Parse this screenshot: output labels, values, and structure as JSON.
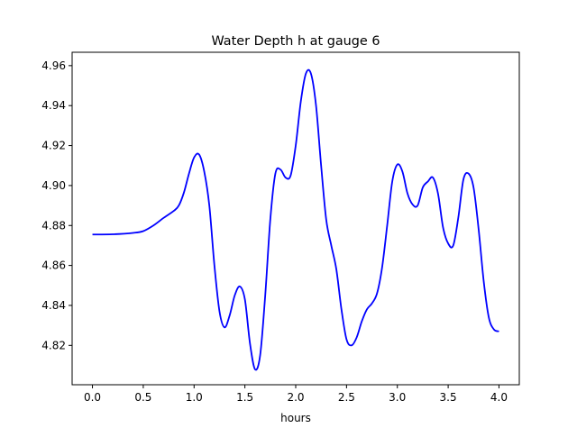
{
  "chart_data": {
    "type": "line",
    "title": "Water Depth h at gauge 6",
    "xlabel": "hours",
    "ylabel": "",
    "xlim": [
      -0.2,
      4.2
    ],
    "ylim": [
      4.8003,
      4.9667
    ],
    "xticks": [
      0.0,
      0.5,
      1.0,
      1.5,
      2.0,
      2.5,
      3.0,
      3.5,
      4.0
    ],
    "xtick_labels": [
      "0.0",
      "0.5",
      "1.0",
      "1.5",
      "2.0",
      "2.5",
      "3.0",
      "3.5",
      "4.0"
    ],
    "yticks": [
      4.82,
      4.84,
      4.86,
      4.88,
      4.9,
      4.92,
      4.94,
      4.96
    ],
    "ytick_labels": [
      "4.82",
      "4.84",
      "4.86",
      "4.88",
      "4.90",
      "4.92",
      "4.94",
      "4.96"
    ],
    "grid": false,
    "legend": "none",
    "series": [
      {
        "color": "#0000ff",
        "x": [
          0.0,
          0.2,
          0.4,
          0.5,
          0.6,
          0.7,
          0.8,
          0.85,
          0.9,
          0.95,
          1.0,
          1.05,
          1.1,
          1.15,
          1.2,
          1.25,
          1.3,
          1.35,
          1.4,
          1.45,
          1.5,
          1.55,
          1.6,
          1.65,
          1.7,
          1.75,
          1.8,
          1.85,
          1.9,
          1.95,
          2.0,
          2.05,
          2.1,
          2.15,
          2.2,
          2.25,
          2.3,
          2.35,
          2.4,
          2.45,
          2.5,
          2.55,
          2.6,
          2.65,
          2.7,
          2.75,
          2.8,
          2.85,
          2.9,
          2.95,
          3.0,
          3.05,
          3.1,
          3.15,
          3.2,
          3.25,
          3.3,
          3.35,
          3.4,
          3.45,
          3.5,
          3.55,
          3.6,
          3.65,
          3.7,
          3.75,
          3.8,
          3.85,
          3.9,
          3.95,
          4.0
        ],
        "y": [
          4.8755,
          4.8756,
          4.8763,
          4.8772,
          4.88,
          4.8838,
          4.8873,
          4.89,
          4.8965,
          4.906,
          4.914,
          4.9155,
          4.907,
          4.89,
          4.86,
          4.837,
          4.829,
          4.835,
          4.845,
          4.8495,
          4.843,
          4.821,
          4.808,
          4.815,
          4.845,
          4.883,
          4.906,
          4.908,
          4.904,
          4.905,
          4.92,
          4.942,
          4.956,
          4.956,
          4.94,
          4.91,
          4.883,
          4.87,
          4.858,
          4.838,
          4.823,
          4.82,
          4.824,
          4.832,
          4.838,
          4.841,
          4.846,
          4.859,
          4.88,
          4.902,
          4.9105,
          4.907,
          4.896,
          4.8905,
          4.89,
          4.899,
          4.902,
          4.904,
          4.896,
          4.879,
          4.871,
          4.87,
          4.884,
          4.903,
          4.906,
          4.899,
          4.878,
          4.852,
          4.834,
          4.828,
          4.827
        ]
      }
    ]
  }
}
